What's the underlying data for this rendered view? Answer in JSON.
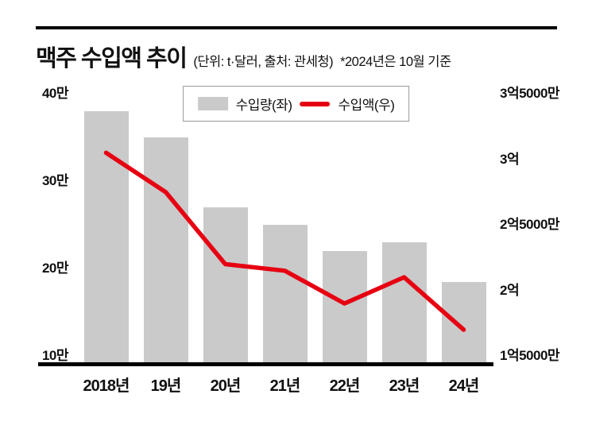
{
  "header": {
    "title": "맥주 수입액 추이",
    "subtitle": "(단위: t·달러, 출처: 관세청)",
    "note": "*2024년은 10월 기준"
  },
  "legend": {
    "bar_label": "수입량(좌)",
    "line_label": "수입액(우)"
  },
  "chart_data": {
    "type": "bar",
    "subtype": "bar+line combo",
    "title": "맥주 수입액 추이",
    "unit_note": "단위: t·달러, 출처: 관세청, *2024년은 10월 기준",
    "categories": [
      "2018년",
      "19년",
      "20년",
      "21년",
      "22년",
      "23년",
      "24년"
    ],
    "series": [
      {
        "name": "수입량(좌)",
        "type": "bar",
        "axis": "left",
        "unit": "만 t",
        "color": "#cacaca",
        "values": [
          38,
          35,
          27,
          25,
          22,
          23,
          18.5
        ]
      },
      {
        "name": "수입액(우)",
        "type": "line",
        "axis": "right",
        "unit": "억 달러",
        "color": "#e60012",
        "values": [
          3.05,
          2.75,
          2.2,
          2.15,
          1.9,
          2.1,
          1.7
        ]
      }
    ],
    "left_axis": {
      "min": 10,
      "max": 40,
      "ticks": [
        "40만",
        "30만",
        "20만",
        "10만"
      ],
      "tick_values": [
        40,
        30,
        20,
        10
      ]
    },
    "right_axis": {
      "min": 1.5,
      "max": 3.5,
      "ticks": [
        "3억5000만",
        "3억",
        "2억5000만",
        "2억",
        "1억5000만"
      ],
      "tick_values": [
        3.5,
        3.0,
        2.5,
        2.0,
        1.5
      ]
    },
    "grid": false,
    "legend_position": "top-center"
  }
}
